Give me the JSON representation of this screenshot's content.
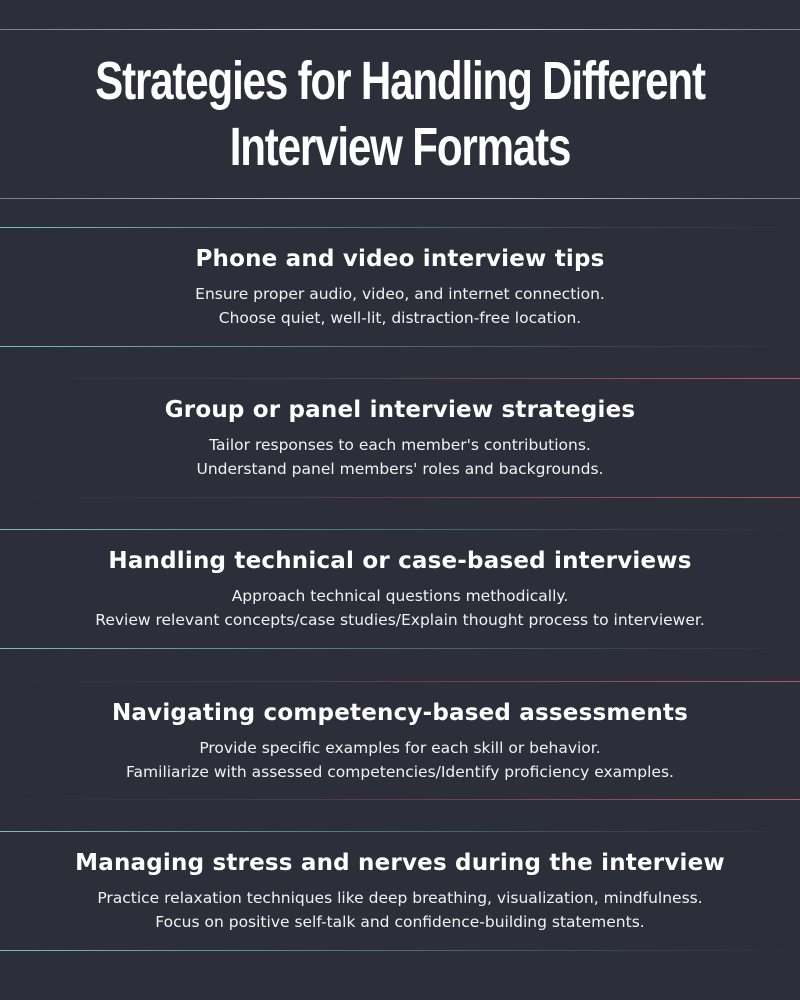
{
  "title": {
    "line1": "Strategies for Handling Different",
    "line2": "Interview Formats"
  },
  "sections": [
    {
      "heading": "Phone and video interview tips",
      "lines": [
        "Ensure proper audio, video, and internet connection.",
        "Choose quiet, well-lit, distraction-free location."
      ]
    },
    {
      "heading": "Group or panel interview strategies",
      "lines": [
        "Tailor responses to each member's contributions.",
        "Understand panel members' roles and backgrounds."
      ]
    },
    {
      "heading": "Handling technical or case-based interviews",
      "lines": [
        "Approach technical questions methodically.",
        "Review relevant concepts/case studies/Explain thought process to interviewer."
      ]
    },
    {
      "heading": "Navigating competency-based assessments",
      "lines": [
        "Provide specific examples for each skill or behavior.",
        "Familiarize with assessed competencies/Identify proficiency examples."
      ]
    },
    {
      "heading": "Managing stress and nerves during the interview",
      "lines": [
        "Practice relaxation techniques like deep breathing, visualization, mindfulness.",
        "Focus on positive self-talk and confidence-building statements."
      ]
    }
  ],
  "colors": {
    "background": "#2c2e3a",
    "text": "#ffffff",
    "accent_teal": "#78d2cd",
    "accent_red": "#cd5a69",
    "rule_grey": "#d2d2d7"
  }
}
